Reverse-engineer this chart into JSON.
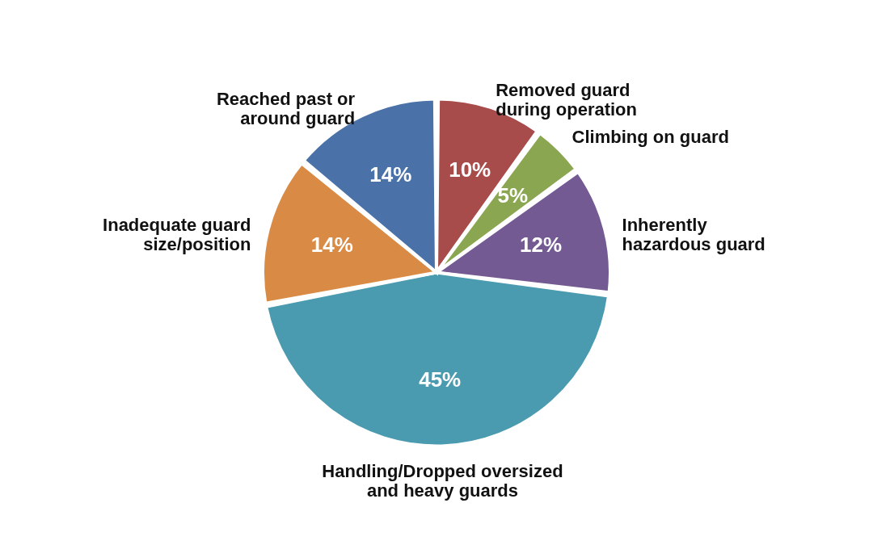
{
  "chart_data": {
    "type": "pie",
    "categories": [
      "Removed guard during operation",
      "Climbing on guard",
      "Inherently hazardous guard",
      "Handling/Dropped oversized and heavy guards",
      "Inadequate guard size/position",
      "Reached past or around guard"
    ],
    "values": [
      10,
      5,
      12,
      45,
      14,
      14
    ],
    "colors": [
      "#a84b4b",
      "#8aa650",
      "#735a93",
      "#4a9ab0",
      "#d98a45",
      "#4a72a8"
    ],
    "value_labels": [
      "10%",
      "5%",
      "12%",
      "45%",
      "14%",
      "14%"
    ],
    "legend": false
  }
}
